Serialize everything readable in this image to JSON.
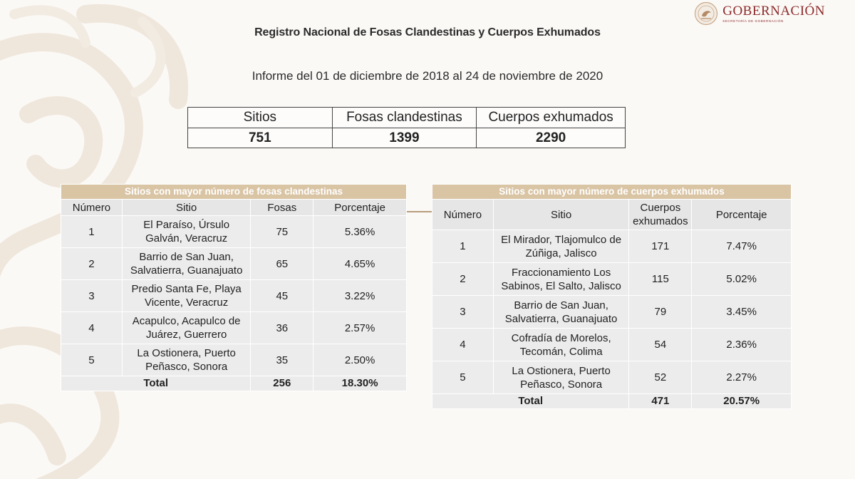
{
  "header": {
    "logo_text": "GOBERNACIÓN",
    "logo_subtext": "SECRETARÍA DE GOBERNACIÓN"
  },
  "title": "Registro Nacional de Fosas Clandestinas y Cuerpos Exhumados",
  "subtitle": "Informe del 01 de diciembre de 2018 al 24 de noviembre de 2020",
  "summary": {
    "headers": [
      "Sitios",
      "Fosas clandestinas",
      "Cuerpos exhumados"
    ],
    "values": [
      "751",
      "1399",
      "2290"
    ]
  },
  "fosas_table": {
    "caption": "Sitios con mayor número de fosas clandestinas",
    "headers": [
      "Número",
      "Sitio",
      "Fosas",
      "Porcentaje"
    ],
    "rows": [
      [
        "1",
        "El Paraíso, Úrsulo Galván, Veracruz",
        "75",
        "5.36%"
      ],
      [
        "2",
        "Barrio de San Juan, Salvatierra, Guanajuato",
        "65",
        "4.65%"
      ],
      [
        "3",
        "Predio Santa Fe, Playa Vicente, Veracruz",
        "45",
        "3.22%"
      ],
      [
        "4",
        "Acapulco, Acapulco de Juárez, Guerrero",
        "36",
        "2.57%"
      ],
      [
        "5",
        "La Ostionera, Puerto Peñasco, Sonora",
        "35",
        "2.50%"
      ]
    ],
    "total": [
      "Total",
      "256",
      "18.30%"
    ]
  },
  "cuerpos_table": {
    "caption": "Sitios con mayor número de cuerpos exhumados",
    "headers": [
      "Número",
      "Sitio",
      "Cuerpos exhumados",
      "Porcentaje"
    ],
    "rows": [
      [
        "1",
        "El Mirador, Tlajomulco de Zúñiga, Jalisco",
        "171",
        "7.47%"
      ],
      [
        "2",
        "Fraccionamiento Los Sabinos, El Salto, Jalisco",
        "115",
        "5.02%"
      ],
      [
        "3",
        "Barrio de San Juan, Salvatierra, Guanajuato",
        "79",
        "3.45%"
      ],
      [
        "4",
        "Cofradía de Morelos, Tecomán, Colima",
        "54",
        "2.36%"
      ],
      [
        "5",
        "La Ostionera, Puerto Peñasco, Sonora",
        "52",
        "2.27%"
      ]
    ],
    "total": [
      "Total",
      "471",
      "20.57%"
    ]
  },
  "colors": {
    "caption_bg": "#d9c4a4",
    "logo": "#8c2b2b",
    "background": "#fbf9f6"
  }
}
